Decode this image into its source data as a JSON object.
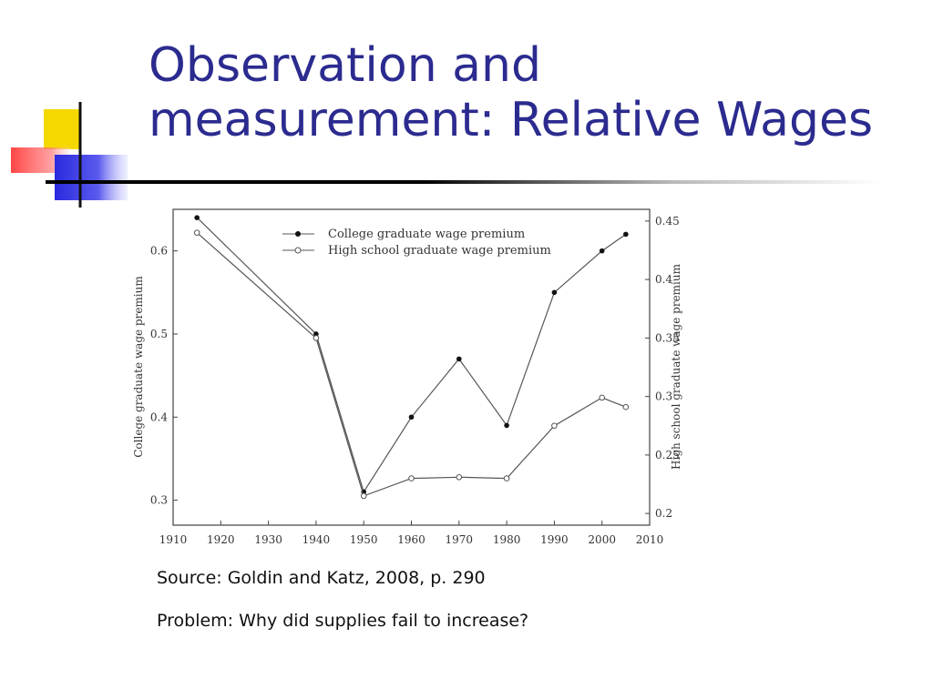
{
  "slide": {
    "title_line1": "Observation and",
    "title_line2": "measurement: Relative Wages",
    "source": "Source: Goldin and Katz, 2008, p. 290",
    "problem": "Problem: Why did supplies fail to increase?"
  },
  "theme": {
    "title_color": "#2b2b8f",
    "logo_colors": {
      "yellow": "#f5d800",
      "red": "#ff3b3b",
      "blue": "#2a2adf"
    }
  },
  "chart_data": {
    "type": "line",
    "xlabel": "",
    "ylabel_left": "College graduate wage premium",
    "ylabel_right": "High school graduate wage premium",
    "x_ticks": [
      1910,
      1920,
      1930,
      1940,
      1950,
      1960,
      1970,
      1980,
      1990,
      2000,
      2010
    ],
    "xlim": [
      1910,
      2010
    ],
    "ylim_left": [
      0.27,
      0.65
    ],
    "y_ticks_left": [
      0.3,
      0.4,
      0.5,
      0.6
    ],
    "ylim_right": [
      0.19,
      0.46
    ],
    "y_ticks_right": [
      0.2,
      0.25,
      0.3,
      0.35,
      0.4,
      0.45
    ],
    "legend_position": "top-center",
    "series": [
      {
        "name": "College graduate wage premium",
        "axis": "left",
        "marker": "filled",
        "x": [
          1915,
          1940,
          1950,
          1960,
          1970,
          1980,
          1990,
          2000,
          2005
        ],
        "y": [
          0.64,
          0.5,
          0.31,
          0.4,
          0.47,
          0.39,
          0.55,
          0.6,
          0.62
        ]
      },
      {
        "name": "High school graduate wage premium",
        "axis": "right",
        "marker": "open",
        "x": [
          1915,
          1940,
          1950,
          1960,
          1970,
          1980,
          1990,
          2000,
          2005
        ],
        "y": [
          0.44,
          0.35,
          0.215,
          0.23,
          0.231,
          0.23,
          0.275,
          0.299,
          0.291
        ]
      }
    ]
  }
}
